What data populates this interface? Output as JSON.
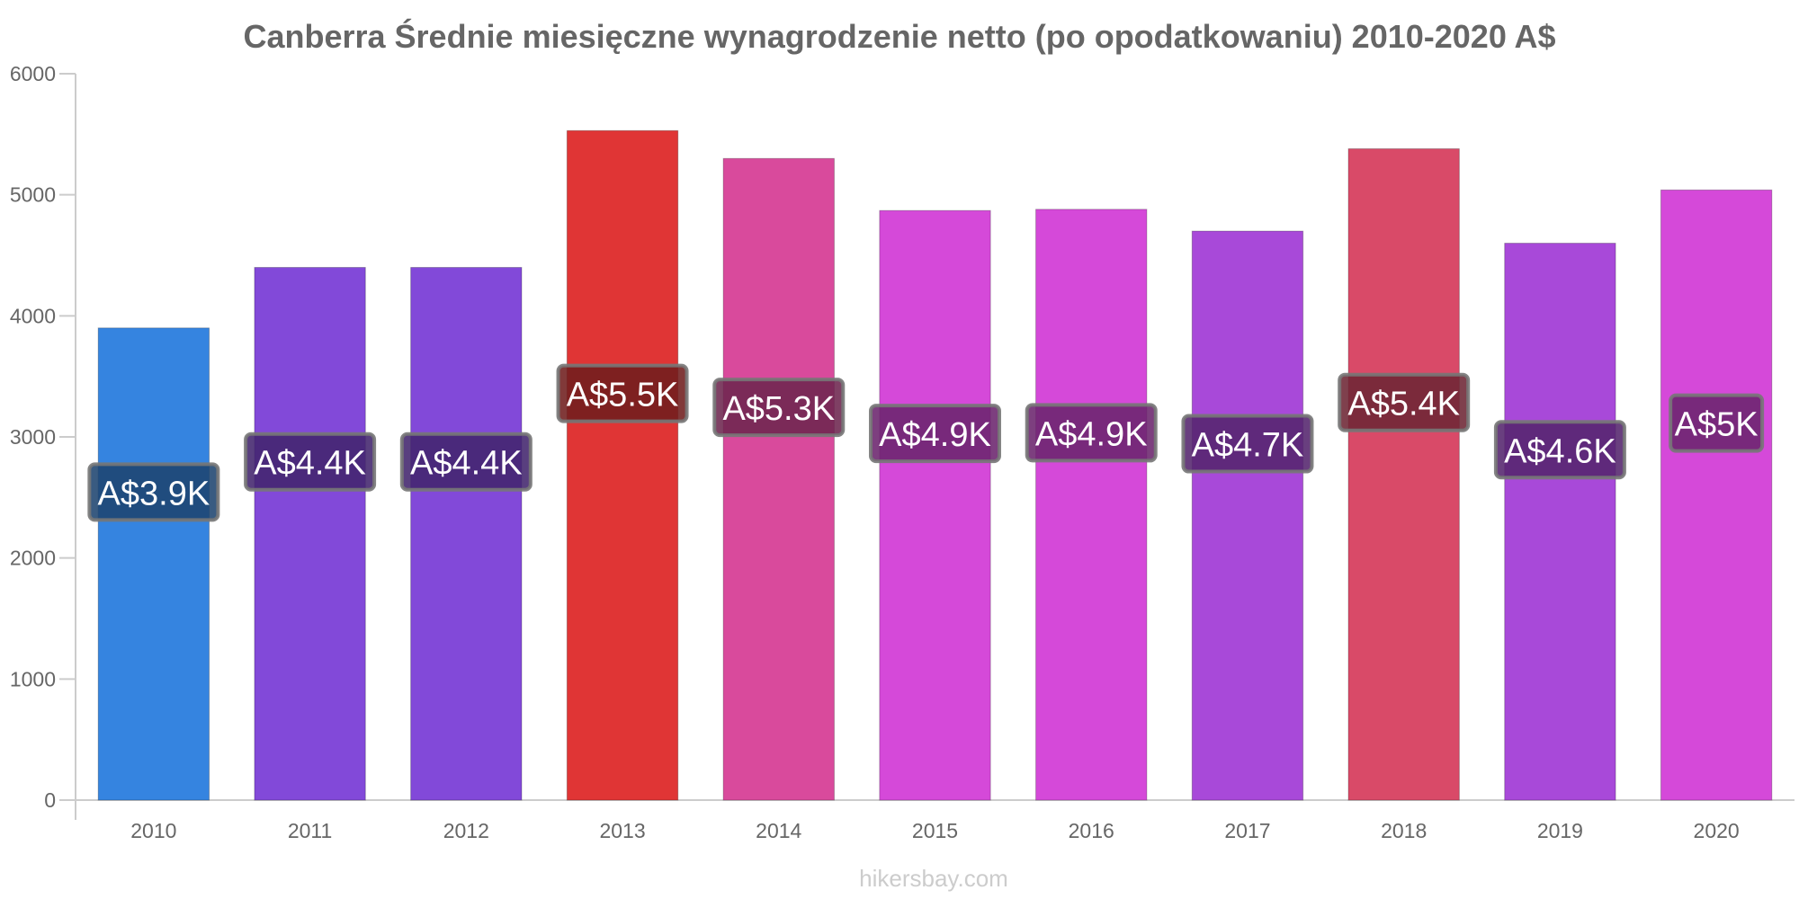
{
  "chart_data": {
    "type": "bar",
    "title": "Canberra Średnie miesięczne wynagrodzenie netto (po opodatkowaniu) 2010-2020 A$",
    "xlabel": "",
    "ylabel": "",
    "ylim": [
      0,
      6000
    ],
    "yticks": [
      "0",
      "1000",
      "2000",
      "3000",
      "4000",
      "5000",
      "6000"
    ],
    "grid": false,
    "categories": [
      "2010",
      "2011",
      "2012",
      "2013",
      "2014",
      "2015",
      "2016",
      "2017",
      "2018",
      "2019",
      "2020"
    ],
    "values": [
      3900,
      4400,
      4400,
      5530,
      5300,
      4870,
      4880,
      4700,
      5380,
      4600,
      5040
    ],
    "data_labels": [
      "A$3.9K",
      "A$4.4K",
      "A$4.4K",
      "A$5.5K",
      "A$5.3K",
      "A$4.9K",
      "A$4.9K",
      "A$4.7K",
      "A$5.4K",
      "A$4.6K",
      "A$5K"
    ],
    "bar_colors": [
      "#3584e0",
      "#8249d9",
      "#8249d9",
      "#e03535",
      "#d94a9c",
      "#d549d9",
      "#d549d9",
      "#a849d9",
      "#d94a68",
      "#a849d9",
      "#d549d9"
    ],
    "label_bg_colors": [
      "#1e4470",
      "#42246d",
      "#42246d",
      "#701e1e",
      "#6d254e",
      "#6b246d",
      "#6b246d",
      "#54246d",
      "#6d2534",
      "#54246d",
      "#6b246d"
    ]
  },
  "watermark": "hikersbay.com"
}
